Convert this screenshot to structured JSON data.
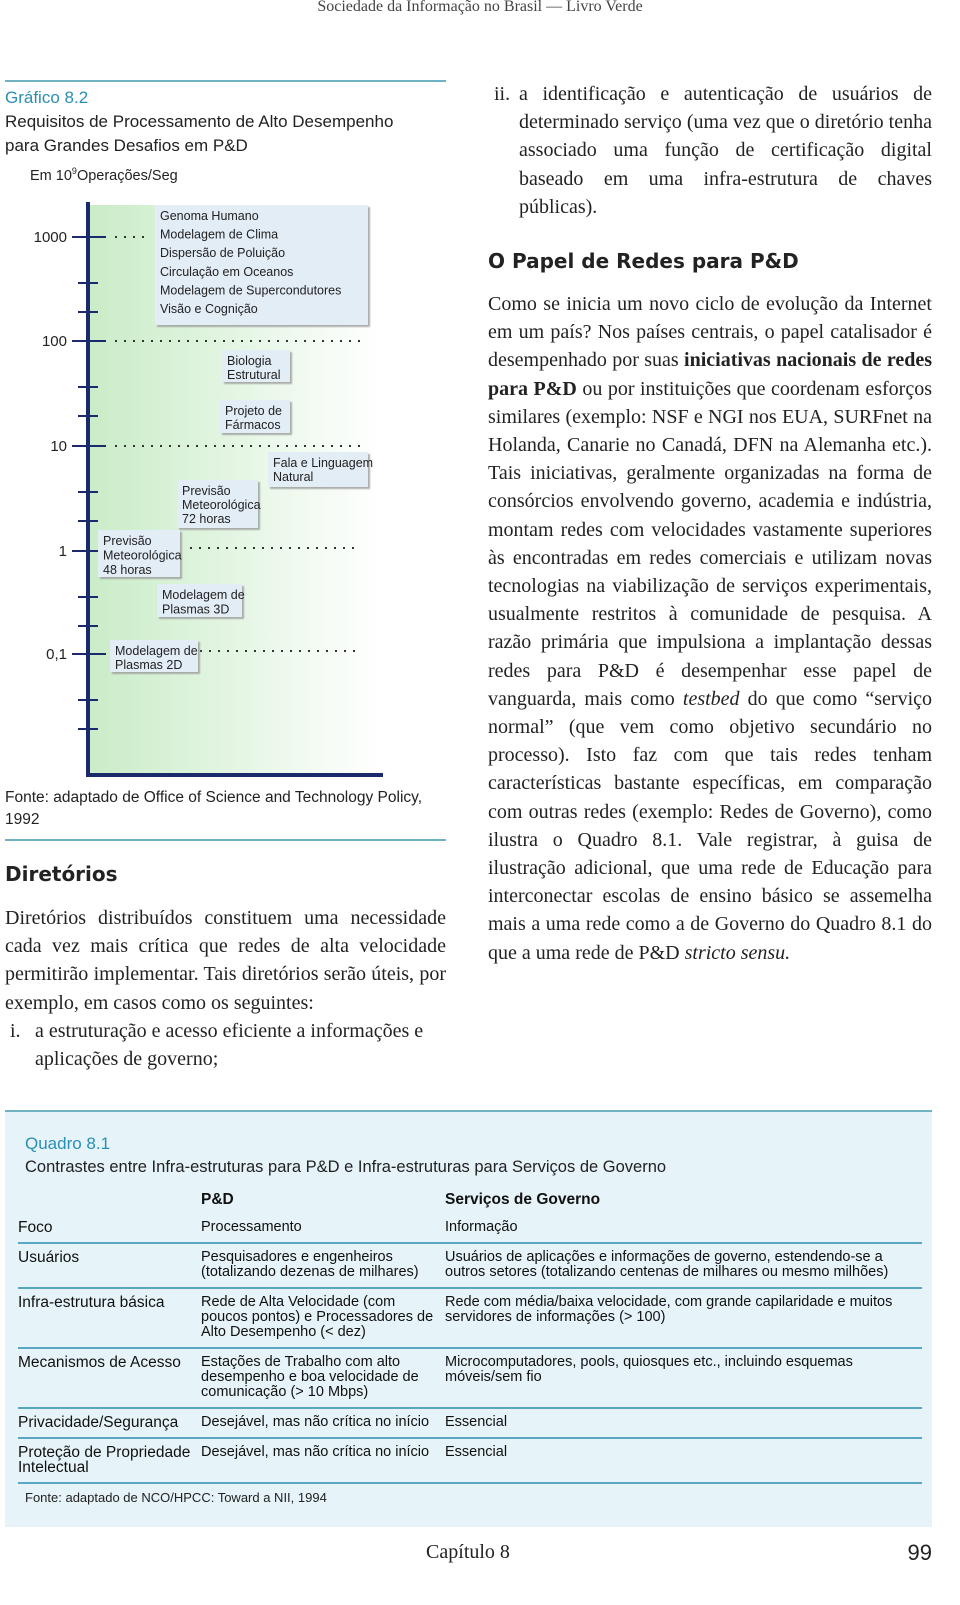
{
  "header": "Sociedade da Informação no Brasil — Livro Verde",
  "figure": {
    "label": "Gráfico 8.2",
    "title": [
      "Requisitos de Processamento de Alto Desempenho",
      "para Grandes Desafios em P&D"
    ],
    "unit_prefix": "Em 10",
    "unit_exponent": "9",
    "unit_suffix": "Operações/Seg",
    "yticks": [
      "1000",
      "100",
      "10",
      "1",
      "0,1"
    ],
    "boxes": [
      {
        "lines": [
          "Genoma Humano",
          "Modelagem de Clima",
          "Dispersão de Poluição",
          "Circulação em Oceanos",
          "Modelagem de Supercondutores",
          "Visão e Cognição"
        ]
      },
      {
        "lines": [
          "Biologia",
          "Estrutural"
        ]
      },
      {
        "lines": [
          "Projeto de",
          "Fármacos"
        ]
      },
      {
        "lines": [
          "Fala e Linguagem",
          "Natural"
        ]
      },
      {
        "lines": [
          "Previsão",
          "Meteorológica",
          "72 horas"
        ]
      },
      {
        "lines": [
          "Previsão",
          "Meteorológica",
          "48 horas"
        ]
      },
      {
        "lines": [
          "Modelagem de",
          "Plasmas 3D"
        ]
      },
      {
        "lines": [
          "Modelagem de",
          "Plasmas 2D"
        ]
      }
    ],
    "source": "Fonte: adaptado de Office of Science and Technology Policy, 1992"
  },
  "diretorios": {
    "heading": "Diretórios",
    "paragraph": "Diretórios distribuídos constituem uma necessidade cada vez mais crítica que redes de alta velocidade permitirão implementar. Tais diretórios serão úteis, por exemplo, em casos como os seguintes:",
    "items": [
      {
        "marker": "i.",
        "text": "a estruturação e acesso eficiente a informações e aplicações de governo;"
      },
      {
        "marker": "ii.",
        "text": "a identificação e autenticação de usuários de determinado serviço (uma vez que o diretório tenha associado uma função de certificação digital baseado em uma infra-estrutura de chaves públicas)."
      }
    ]
  },
  "redes": {
    "heading": "O Papel de Redes para P&D",
    "paragraph": [
      "Como se inicia um novo ciclo de evolução da Internet em um país? Nos países centrais, o papel catalisador é desempenhado por suas ",
      "iniciativas nacionais de redes para P&D",
      " ou por instituições que coordenam esforços similares (exemplo: NSF e NGI nos EUA, SURFnet na Holanda, Canarie no Canadá, DFN na Alemanha etc.). Tais iniciativas, geralmente organizadas na forma de consórcios envolvendo governo, academia e indústria, montam redes com velocidades vastamente superiores às encontradas em redes comerciais e utilizam novas tecnologias na viabilização de serviços experimentais, usualmente restritos à comunidade de pesquisa. A razão primária que impulsiona a implantação dessas redes para P&D é desempenhar esse papel de vanguarda, mais como ",
      "testbed",
      " do que como “serviço normal” (que vem como objetivo secundário no processo). Isto faz com que tais redes tenham características bastante específicas, em comparação com outras redes (exemplo: Redes de Governo), como ilustra o Quadro 8.1. Vale registrar, à guisa de ilustração adicional, que uma rede de Educação para interconectar escolas de ensino básico se assemelha mais a uma rede como a de Governo do Quadro 8.1 do que a uma rede de P&D ",
      "stricto sensu."
    ]
  },
  "quadro": {
    "label": "Quadro 8.1",
    "title": "Contrastes entre Infra-estruturas para P&D e Infra-estruturas para Serviços de Governo",
    "columns": [
      "P&D",
      "Serviços de Governo"
    ],
    "rows": [
      [
        "Foco",
        "Processamento",
        "Informação"
      ],
      [
        "Usuários",
        "Pesquisadores e engenheiros (totalizando dezenas de milhares)",
        "Usuários de aplicações e informações de governo, estendendo-se a outros setores (totalizando centenas de milhares ou mesmo milhões)"
      ],
      [
        "Infra-estrutura básica",
        "Rede de Alta Velocidade (com poucos pontos) e Processadores de Alto Desempenho (< dez)",
        "Rede com média/baixa velocidade, com grande capilaridade e muitos servidores de informações (> 100)"
      ],
      [
        "Mecanismos de Acesso",
        "Estações de Trabalho com alto desempenho e boa velocidade de comunicação (> 10 Mbps)",
        "Microcomputadores, pools, quiosques etc., incluindo esquemas móveis/sem fio"
      ],
      [
        "Privacidade/Segurança",
        "Desejável, mas não crítica no início",
        "Essencial"
      ],
      [
        "Proteção de Propriedade Intelectual",
        "Desejável, mas não crítica no início",
        "Essencial"
      ]
    ],
    "source": "Fonte: adaptado de NCO/HPCC: Toward a NII, 1994"
  },
  "footer": {
    "chapter": "Capítulo 8",
    "page": "99"
  }
}
